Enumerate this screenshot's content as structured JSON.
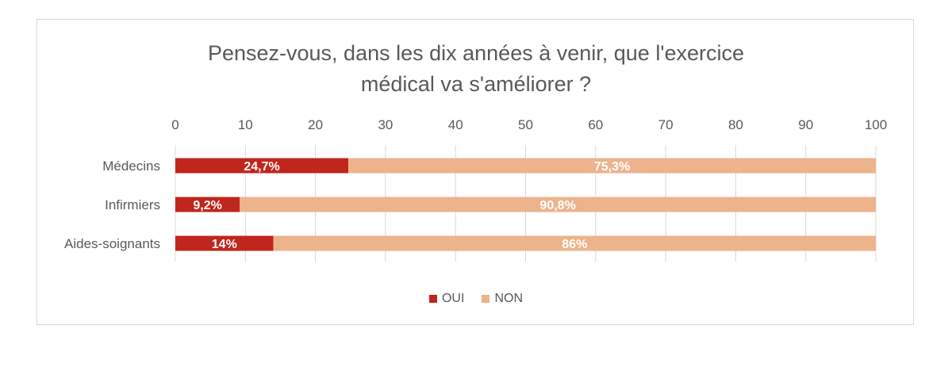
{
  "chart_data": {
    "type": "bar",
    "orientation": "horizontal",
    "stacked": true,
    "title_lines": [
      "Pensez-vous, dans les dix années à venir, que l'exercice",
      "médical va s'améliorer ?"
    ],
    "categories": [
      "Médecins",
      "Infirmiers",
      "Aides-soignants"
    ],
    "series": [
      {
        "name": "OUI",
        "color": "#c0261c",
        "values": [
          24.7,
          9.2,
          14
        ],
        "labels": [
          "24,7%",
          "9,2%",
          "14%"
        ]
      },
      {
        "name": "NON",
        "color": "#edb38c",
        "values": [
          75.3,
          90.8,
          86
        ],
        "labels": [
          "75,3%",
          "90,8%",
          "86%"
        ]
      }
    ],
    "xlim": [
      0,
      100
    ],
    "xticks": [
      0,
      10,
      20,
      30,
      40,
      50,
      60,
      70,
      80,
      90,
      100
    ],
    "x_axis_position": "top",
    "grid": true,
    "legend_position": "bottom",
    "gridline_color": "#d9d9d9"
  }
}
